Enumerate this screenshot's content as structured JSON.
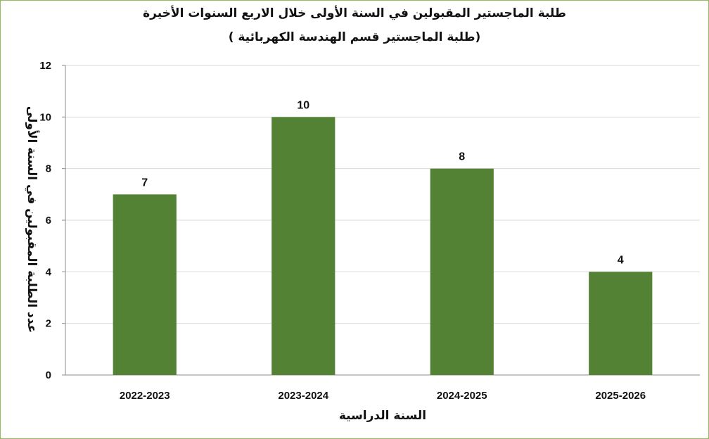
{
  "chart_data": {
    "type": "bar",
    "title": "طلبة الماجستير المقبولين في السنة الأولى خلال الاربع السنوات الأخيرة",
    "subtitle": "(طلبة الماجستير قسم الهندسة الكهربائية )",
    "xlabel": "السنة الدراسية",
    "ylabel": "عدد الطلبة المقبولين في السنة الأولى",
    "categories": [
      "2022-2023",
      "2023-2024",
      "2024-2025",
      "2025-2026"
    ],
    "values": [
      7,
      10,
      8,
      4
    ],
    "ylim": [
      0,
      12
    ],
    "yticks": [
      0,
      2,
      4,
      6,
      8,
      10,
      12
    ],
    "grid": true,
    "legend": "none",
    "colors": {
      "bar": "#548235",
      "grid": "#d9d9d9",
      "axis": "#8c8c8c",
      "border": "#8fbf5a"
    }
  }
}
